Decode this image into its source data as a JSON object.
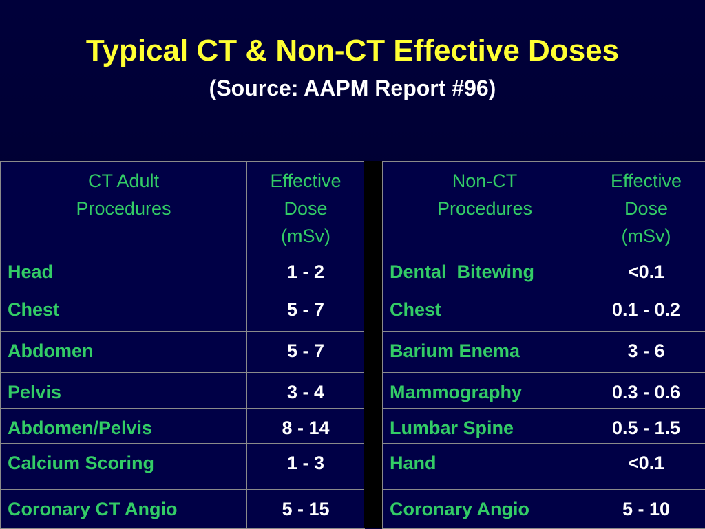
{
  "title": "Typical CT & Non-CT Effective Doses",
  "subtitle": "(Source: AAPM Report #96)",
  "left_table": {
    "headers": [
      [
        "CT Adult",
        "Procedures"
      ],
      [
        "Effective",
        "Dose",
        "(mSv)"
      ]
    ],
    "rows": [
      {
        "name": "Head",
        "dose": "1 - 2"
      },
      {
        "name": "Chest",
        "dose": "5 - 7"
      },
      {
        "name": "Abdomen",
        "dose": "5 - 7"
      },
      {
        "name": "Pelvis",
        "dose": "3 - 4"
      },
      {
        "name": "Abdomen/Pelvis",
        "dose": "8 - 14"
      },
      {
        "name": "Calcium Scoring",
        "dose": "1 - 3"
      },
      {
        "name": "Coronary CT  Angio",
        "dose": "5 - 15"
      }
    ]
  },
  "right_table": {
    "headers": [
      [
        "Non-CT",
        "Procedures"
      ],
      [
        "Effective",
        "Dose",
        "(mSv)"
      ]
    ],
    "rows": [
      {
        "name": "Dental  Bitewing",
        "dose": "<0.1"
      },
      {
        "name": "Chest",
        "dose": "0.1 - 0.2"
      },
      {
        "name": "Barium Enema",
        "dose": "3 - 6"
      },
      {
        "name": "Mammography",
        "dose": "0.3 - 0.6"
      },
      {
        "name": "Lumbar Spine",
        "dose": "0.5 - 1.5"
      },
      {
        "name": "Hand",
        "dose": "<0.1"
      },
      {
        "name": "Coronary Angio",
        "dose": "5 - 10"
      }
    ]
  }
}
